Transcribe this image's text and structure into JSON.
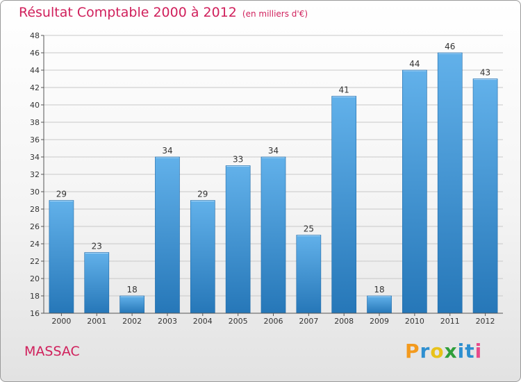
{
  "chart_data": {
    "type": "bar",
    "title": "Résultat Comptable 2000 à 2012",
    "unit_label": "(en milliers d'€)",
    "categories": [
      "2000",
      "2001",
      "2002",
      "2003",
      "2004",
      "2005",
      "2006",
      "2007",
      "2008",
      "2009",
      "2010",
      "2011",
      "2012"
    ],
    "values": [
      29,
      23,
      18,
      34,
      29,
      33,
      34,
      25,
      41,
      18,
      44,
      46,
      43
    ],
    "ylim": [
      16,
      48
    ],
    "yticks": [
      16,
      18,
      20,
      22,
      24,
      26,
      28,
      30,
      32,
      34,
      36,
      38,
      40,
      42,
      44,
      46,
      48
    ],
    "grid": true,
    "xlabel": "",
    "ylabel": ""
  },
  "place_name": "MASSAC",
  "logo": {
    "letters": [
      "P",
      "r",
      "o",
      "x",
      "i",
      "t",
      "i"
    ],
    "colors": [
      "#f39a1e",
      "#2e8fd0",
      "#e8c21a",
      "#2f9e3a",
      "#2e8fd0",
      "#2e8fd0",
      "#e84b8a"
    ]
  },
  "colors": {
    "bar_light": "#62b1ea",
    "bar_dark": "#2677b8",
    "accent": "#d01f5b"
  }
}
